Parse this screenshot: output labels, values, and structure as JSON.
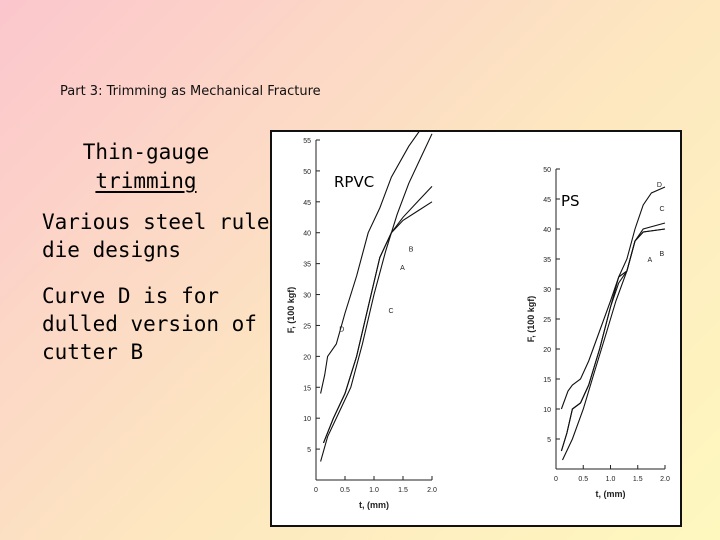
{
  "slide": {
    "subtitle": "Part 3: Trimming as Mechanical Fracture",
    "heading_line1": "Thin-gauge",
    "heading_line2": "trimming",
    "bullets": [
      "Various steel rule die designs",
      "Curve D is for dulled version of cutter B"
    ]
  },
  "chart_data": [
    {
      "type": "line",
      "title": "RPVC",
      "xlabel": "t, (mm)",
      "ylabel": "F, (100 kgf)",
      "xlim": [
        0,
        2.0
      ],
      "ylim": [
        0,
        55
      ],
      "xticks": [
        0,
        0.5,
        1.0,
        1.5,
        2.0
      ],
      "yticks": [
        5,
        10,
        15,
        20,
        25,
        30,
        35,
        40,
        45,
        50,
        55
      ],
      "grid": false,
      "series": [
        {
          "name": "A",
          "label_at": [
            1.45,
            34
          ],
          "points": [
            [
              0.13,
              6
            ],
            [
              0.3,
              10
            ],
            [
              0.5,
              14
            ],
            [
              0.7,
              20
            ],
            [
              0.9,
              28
            ],
            [
              1.1,
              36
            ],
            [
              1.3,
              40
            ],
            [
              1.5,
              42
            ],
            [
              1.75,
              43.5
            ],
            [
              2.0,
              45
            ]
          ]
        },
        {
          "name": "B",
          "label_at": [
            1.6,
            37
          ],
          "points": [
            [
              0.13,
              6
            ],
            [
              0.3,
              10
            ],
            [
              0.5,
              14
            ],
            [
              0.7,
              20
            ],
            [
              0.9,
              28
            ],
            [
              1.1,
              36
            ],
            [
              1.3,
              40
            ],
            [
              1.5,
              42.5
            ],
            [
              1.75,
              45
            ],
            [
              2.0,
              47.5
            ]
          ]
        },
        {
          "name": "C",
          "label_at": [
            1.25,
            27
          ],
          "points": [
            [
              0.08,
              3
            ],
            [
              0.2,
              7
            ],
            [
              0.4,
              11
            ],
            [
              0.6,
              15
            ],
            [
              0.8,
              22
            ],
            [
              1.0,
              30
            ],
            [
              1.2,
              37
            ],
            [
              1.4,
              43
            ],
            [
              1.6,
              48
            ],
            [
              1.8,
              52
            ],
            [
              2.0,
              56
            ]
          ]
        },
        {
          "name": "D",
          "label_at": [
            0.4,
            24
          ],
          "points": [
            [
              0.08,
              14
            ],
            [
              0.15,
              17
            ],
            [
              0.2,
              20
            ],
            [
              0.35,
              22
            ],
            [
              0.5,
              27
            ],
            [
              0.7,
              33
            ],
            [
              0.9,
              40
            ],
            [
              1.1,
              44
            ],
            [
              1.3,
              49
            ],
            [
              1.6,
              54
            ],
            [
              1.9,
              58
            ]
          ]
        }
      ]
    },
    {
      "type": "line",
      "title": "PS",
      "xlabel": "t, (mm)",
      "ylabel": "F, (100 kgf)",
      "xlim": [
        0,
        2.0
      ],
      "ylim": [
        0,
        50
      ],
      "xticks": [
        0,
        0.5,
        1.0,
        1.5,
        2.0
      ],
      "yticks": [
        5,
        10,
        15,
        20,
        25,
        30,
        35,
        40,
        45,
        50
      ],
      "grid": false,
      "series": [
        {
          "name": "A",
          "label_at": [
            1.68,
            34.5
          ],
          "points": [
            [
              0.1,
              3
            ],
            [
              0.2,
              6
            ],
            [
              0.3,
              10
            ],
            [
              0.45,
              11
            ],
            [
              0.6,
              14
            ],
            [
              0.8,
              20
            ],
            [
              1.0,
              27
            ],
            [
              1.15,
              32
            ],
            [
              1.3,
              33
            ],
            [
              1.45,
              38
            ],
            [
              1.6,
              39.5
            ],
            [
              2.0,
              40
            ]
          ]
        },
        {
          "name": "B",
          "label_at": [
            1.9,
            35.5
          ],
          "points": [
            [
              0.1,
              3
            ],
            [
              0.2,
              6
            ],
            [
              0.3,
              10
            ],
            [
              0.45,
              11
            ],
            [
              0.6,
              14
            ],
            [
              0.8,
              20
            ],
            [
              1.0,
              27
            ],
            [
              1.15,
              31
            ],
            [
              1.3,
              33
            ],
            [
              1.45,
              38
            ],
            [
              1.6,
              39.5
            ],
            [
              2.0,
              40
            ]
          ]
        },
        {
          "name": "C",
          "label_at": [
            1.9,
            43
          ],
          "points": [
            [
              0.12,
              1.5
            ],
            [
              0.3,
              5
            ],
            [
              0.5,
              10
            ],
            [
              0.7,
              16
            ],
            [
              0.9,
              22
            ],
            [
              1.1,
              28
            ],
            [
              1.3,
              33
            ],
            [
              1.45,
              38
            ],
            [
              1.6,
              40
            ],
            [
              2.0,
              41
            ]
          ]
        },
        {
          "name": "D",
          "label_at": [
            1.85,
            47
          ],
          "points": [
            [
              0.1,
              10
            ],
            [
              0.22,
              13
            ],
            [
              0.3,
              14
            ],
            [
              0.45,
              15
            ],
            [
              0.6,
              18
            ],
            [
              0.8,
              23
            ],
            [
              1.0,
              28
            ],
            [
              1.15,
              32
            ],
            [
              1.3,
              35
            ],
            [
              1.45,
              40
            ],
            [
              1.6,
              44
            ],
            [
              1.75,
              46
            ],
            [
              2.0,
              47
            ]
          ]
        }
      ]
    }
  ]
}
